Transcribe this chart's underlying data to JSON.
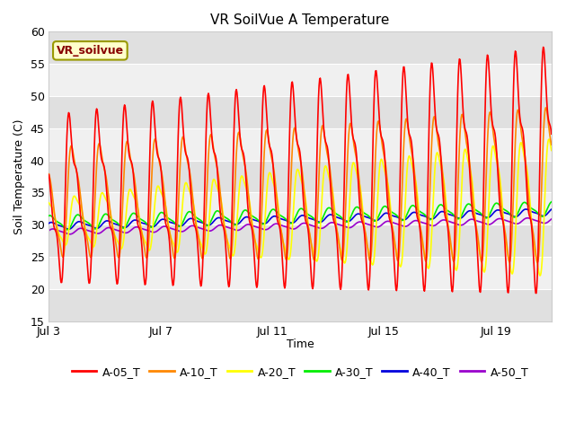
{
  "title": "VR SoilVue A Temperature",
  "ylabel": "Soil Temperature (C)",
  "xlabel": "Time",
  "ylim": [
    15,
    60
  ],
  "yticks": [
    15,
    20,
    25,
    30,
    35,
    40,
    45,
    50,
    55,
    60
  ],
  "xtick_labels": [
    "Jul 3",
    "Jul 7",
    "Jul 11",
    "Jul 15",
    "Jul 19"
  ],
  "xtick_positions": [
    3,
    7,
    11,
    15,
    19
  ],
  "start_day": 3,
  "end_day": 21,
  "colors": {
    "A-05_T": "#ff0000",
    "A-10_T": "#ff8800",
    "A-20_T": "#ffff00",
    "A-30_T": "#00ee00",
    "A-40_T": "#0000dd",
    "A-50_T": "#9900cc"
  },
  "legend_label": "VR_soilvue",
  "band_light": "#f0f0f0",
  "band_dark": "#e0e0e0",
  "plot_bg": "#f0f0f0",
  "fig_bg": "#ffffff",
  "grid_color": "#ffffff",
  "title_fontsize": 11,
  "axis_fontsize": 9,
  "legend_fontsize": 9
}
